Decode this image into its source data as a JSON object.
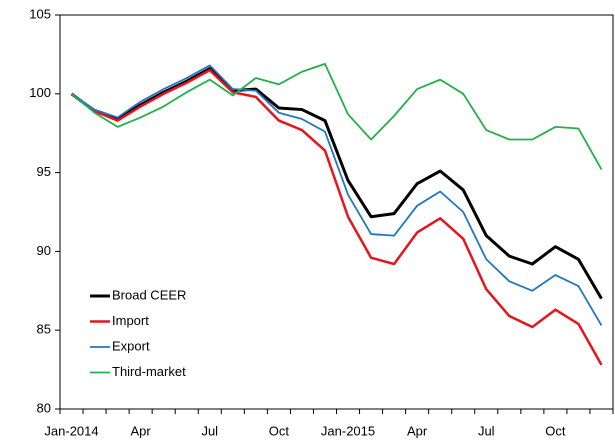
{
  "chart_data": {
    "type": "line",
    "categories": [
      "Jan-2014",
      null,
      null,
      "Apr",
      null,
      null,
      "Jul",
      null,
      null,
      "Oct",
      null,
      null,
      "Jan-2015",
      null,
      null,
      "Apr",
      null,
      null,
      "Jul",
      null,
      null,
      "Oct",
      null,
      null
    ],
    "series": [
      {
        "name": "Broad CEER",
        "color": "#000000",
        "width": 3,
        "values": [
          100,
          98.9,
          98.4,
          99.3,
          100.1,
          100.8,
          101.6,
          100.2,
          100.3,
          99.1,
          99.0,
          98.3,
          94.5,
          92.2,
          92.4,
          94.3,
          95.1,
          93.9,
          91.0,
          89.7,
          89.2,
          90.3,
          89.5,
          87.0
        ]
      },
      {
        "name": "Import",
        "color": "#e8141c",
        "width": 2.5,
        "values": [
          100,
          98.9,
          98.3,
          99.2,
          100.0,
          100.7,
          101.5,
          100.1,
          99.8,
          98.3,
          97.7,
          96.4,
          92.2,
          89.6,
          89.2,
          91.2,
          92.1,
          90.8,
          87.6,
          85.9,
          85.2,
          86.3,
          85.4,
          82.8
        ]
      },
      {
        "name": "Export",
        "color": "#1f77c4",
        "width": 1.8,
        "values": [
          100,
          99.0,
          98.5,
          99.5,
          100.3,
          101.0,
          101.8,
          100.3,
          100.2,
          98.8,
          98.4,
          97.6,
          93.6,
          91.1,
          91.0,
          92.9,
          93.8,
          92.5,
          89.5,
          88.1,
          87.5,
          88.5,
          87.8,
          85.3
        ]
      },
      {
        "name": "Third-market",
        "color": "#22b04b",
        "width": 1.8,
        "values": [
          100,
          98.8,
          97.9,
          98.5,
          99.2,
          100.1,
          100.9,
          99.9,
          101.0,
          100.6,
          101.4,
          101.9,
          98.7,
          97.1,
          98.6,
          100.3,
          100.9,
          100.0,
          97.7,
          97.1,
          97.1,
          97.9,
          97.8,
          95.2
        ]
      }
    ],
    "ylim": [
      80,
      105
    ],
    "yticks": [
      80,
      85,
      90,
      95,
      100,
      105
    ],
    "legend": "lower left"
  }
}
